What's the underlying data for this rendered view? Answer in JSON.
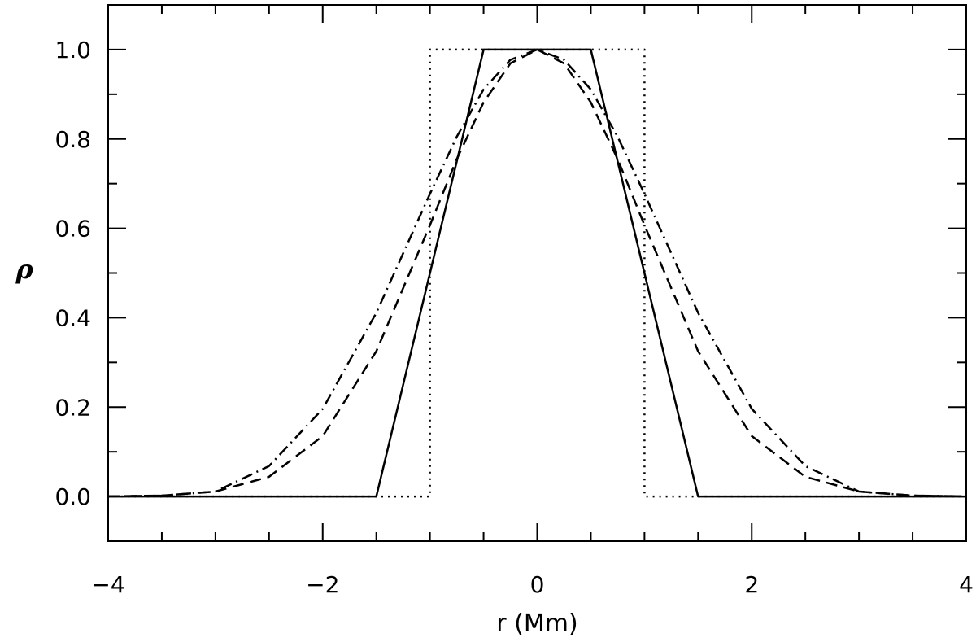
{
  "chart_data": {
    "type": "line",
    "title": "",
    "xlabel": "r  (Mm)",
    "ylabel": "ρ",
    "xlim": [
      -4,
      4
    ],
    "ylim": [
      -0.1,
      1.1
    ],
    "grid": false,
    "x_ticks": [
      -4,
      -2,
      0,
      2,
      4
    ],
    "x_tick_labels": [
      "−4",
      "−2",
      "0",
      "2",
      "4"
    ],
    "y_ticks": [
      0.0,
      0.2,
      0.4,
      0.6,
      0.8,
      1.0
    ],
    "y_tick_labels": [
      "0.0",
      "0.2",
      "0.4",
      "0.6",
      "0.8",
      "1.0"
    ],
    "series": [
      {
        "style": "solid",
        "x": [
          -4,
          -1.5,
          -0.5,
          0.5,
          1.5,
          4
        ],
        "y": [
          0,
          0,
          1,
          1,
          0,
          0
        ]
      },
      {
        "style": "dotted",
        "x": [
          -4,
          -1,
          -1,
          1,
          1,
          4
        ],
        "y": [
          0,
          0,
          1,
          1,
          0,
          0
        ]
      },
      {
        "style": "dashed",
        "x": [
          -4,
          -3.5,
          -3,
          -2.5,
          -2,
          -1.5,
          -1,
          -0.75,
          -0.5,
          -0.25,
          0,
          0.25,
          0.5,
          0.75,
          1,
          1.5,
          2,
          2.5,
          3,
          3.5,
          4
        ],
        "y": [
          0.0003,
          0.002,
          0.011,
          0.044,
          0.135,
          0.325,
          0.607,
          0.755,
          0.882,
          0.969,
          1.0,
          0.969,
          0.882,
          0.755,
          0.607,
          0.325,
          0.135,
          0.044,
          0.011,
          0.002,
          0.0003
        ]
      },
      {
        "style": "dashdot",
        "x": [
          -4,
          -3.5,
          -3,
          -2.5,
          -2,
          -1.5,
          -1,
          -0.75,
          -0.5,
          -0.25,
          0,
          0.25,
          0.5,
          0.75,
          1,
          1.5,
          2,
          2.5,
          3,
          3.5,
          4
        ],
        "y": [
          0.0003,
          0.002,
          0.011,
          0.068,
          0.196,
          0.411,
          0.677,
          0.805,
          0.911,
          0.977,
          1.0,
          0.977,
          0.911,
          0.805,
          0.677,
          0.411,
          0.196,
          0.068,
          0.011,
          0.002,
          0.0003
        ]
      }
    ]
  }
}
